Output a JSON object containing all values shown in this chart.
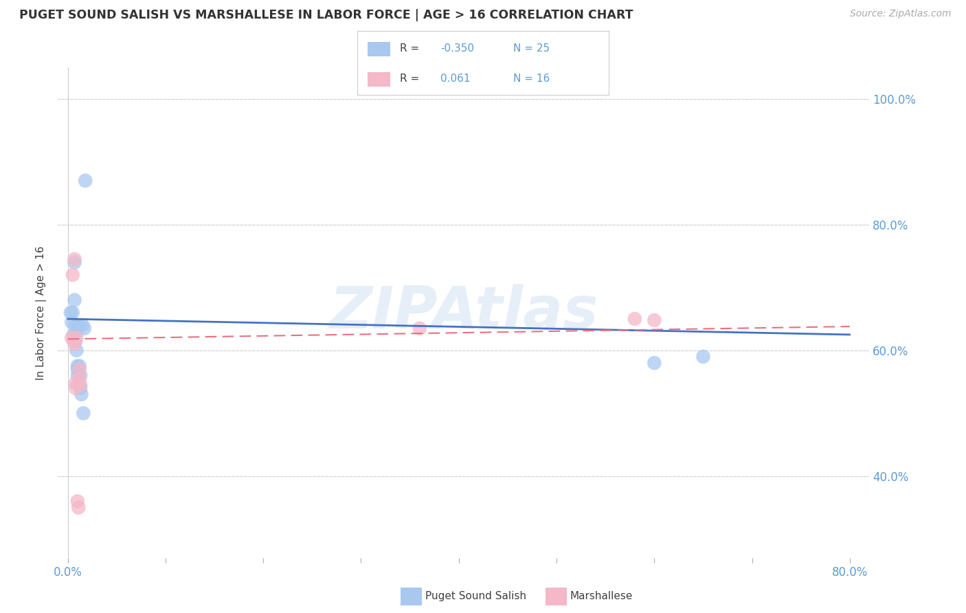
{
  "title": "PUGET SOUND SALISH VS MARSHALLESE IN LABOR FORCE | AGE > 16 CORRELATION CHART",
  "source": "Source: ZipAtlas.com",
  "ylabel": "In Labor Force | Age > 16",
  "xlim": [
    -0.01,
    0.82
  ],
  "ylim": [
    0.27,
    1.05
  ],
  "xtick_positions": [
    0.0,
    0.1,
    0.2,
    0.3,
    0.4,
    0.5,
    0.6,
    0.7,
    0.8
  ],
  "xticklabels": [
    "0.0%",
    "",
    "",
    "",
    "",
    "",
    "",
    "",
    "80.0%"
  ],
  "ytick_positions": [
    0.4,
    0.6,
    0.8,
    1.0
  ],
  "ytick_labels": [
    "40.0%",
    "60.0%",
    "80.0%",
    "100.0%"
  ],
  "salish_color": "#A8C8F0",
  "marshallese_color": "#F4B8C8",
  "salish_line_color": "#4472C4",
  "marshallese_line_color": "#E87080",
  "watermark": "ZIPAtlas",
  "background_color": "#FFFFFF",
  "grid_color": "#D0D0D0",
  "axis_color": "#5B9BD5",
  "label_color": "#404040",
  "salish_x": [
    0.003,
    0.004,
    0.005,
    0.006,
    0.007,
    0.007,
    0.008,
    0.008,
    0.009,
    0.009,
    0.01,
    0.01,
    0.01,
    0.011,
    0.011,
    0.012,
    0.013,
    0.013,
    0.014,
    0.015,
    0.016,
    0.017,
    0.018,
    0.6,
    0.65
  ],
  "salish_y": [
    0.66,
    0.645,
    0.66,
    0.625,
    0.74,
    0.68,
    0.64,
    0.615,
    0.63,
    0.6,
    0.575,
    0.57,
    0.56,
    0.64,
    0.545,
    0.575,
    0.56,
    0.54,
    0.53,
    0.64,
    0.5,
    0.635,
    0.87,
    0.58,
    0.59
  ],
  "marshallese_x": [
    0.004,
    0.005,
    0.006,
    0.007,
    0.007,
    0.008,
    0.008,
    0.009,
    0.01,
    0.011,
    0.012,
    0.012,
    0.013,
    0.36,
    0.58,
    0.6
  ],
  "marshallese_y": [
    0.62,
    0.72,
    0.615,
    0.745,
    0.61,
    0.548,
    0.54,
    0.62,
    0.36,
    0.35,
    0.57,
    0.555,
    0.545,
    0.635,
    0.65,
    0.648
  ],
  "salish_trend_x": [
    0.0,
    0.8
  ],
  "salish_trend_y": [
    0.65,
    0.625
  ],
  "marsh_trend_x": [
    0.0,
    0.8
  ],
  "marsh_trend_y": [
    0.618,
    0.638
  ],
  "legend_R_label_color": "#404040",
  "legend_val_color": "#5B9BD5",
  "legend_box_edge": "#CCCCCC"
}
